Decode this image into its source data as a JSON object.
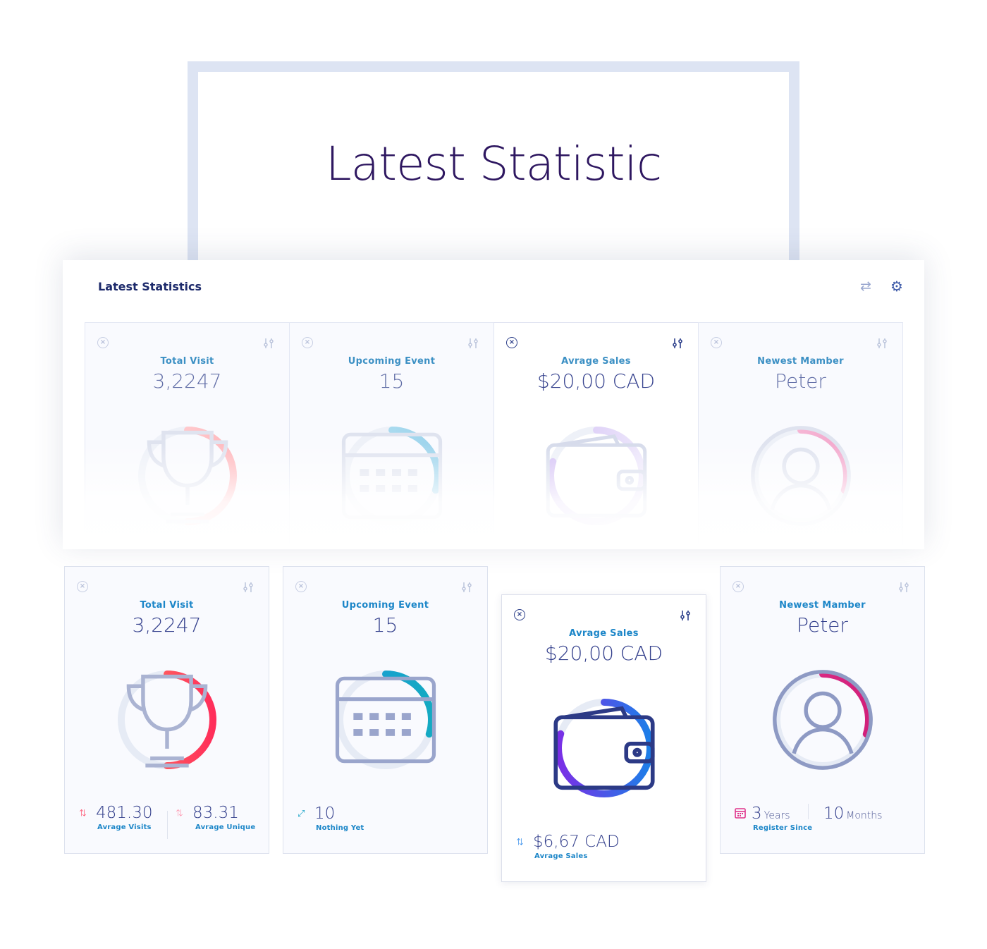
{
  "hero": {
    "title": "Latest Statistic"
  },
  "panel": {
    "title": "Latest Statistics",
    "cards": [
      {
        "label": "Total Visit",
        "value": "3,2247",
        "progress": 0.5,
        "color_start": "#ffd9dc",
        "color_end": "#ffb7bc",
        "icon": "trophy-icon"
      },
      {
        "label": "Upcoming Event",
        "value": "15",
        "progress": 0.3,
        "color_start": "#b6e1f2",
        "color_end": "#9bd3ec",
        "icon": "calendar-icon"
      },
      {
        "label": "Avrage Sales",
        "value": "$20,00 CAD",
        "progress": 0.8,
        "color_start": "#d4c1f5",
        "color_end": "#ede7fb",
        "icon": "wallet-icon"
      },
      {
        "label": "Newest Mamber",
        "value": "Peter",
        "progress": 0.3,
        "color_start": "#f8c6de",
        "color_end": "#f3a5cb",
        "icon": "user-icon"
      }
    ]
  },
  "cards": [
    {
      "label": "Total Visit",
      "value": "3,2247",
      "progress": 0.5,
      "color_start": "#ff7a62",
      "color_end": "#ff2e5a",
      "icon": "trophy-icon",
      "stats": [
        {
          "value": "481.30",
          "label": "Avrage Visits",
          "arrow_color": "#ff3d5e"
        },
        {
          "value": "83.31",
          "label": "Avrage Unique",
          "arrow_color": "#ff8aa6"
        }
      ]
    },
    {
      "label": "Upcoming Event",
      "value": "15",
      "progress": 0.3,
      "color_start": "#1b9ad8",
      "color_end": "#14aac2",
      "icon": "calendar-icon",
      "stats": [
        {
          "value": "10",
          "label": "Nothing Yet",
          "arrow_color": "#1aa3c7"
        }
      ]
    },
    {
      "label": "Avrage Sales",
      "value": "$20,00 CAD",
      "progress": 0.8,
      "color_start": "#7b2ee6",
      "color_end": "#1c7fe8",
      "icon": "wallet-icon",
      "stats": [
        {
          "value": "$6,67 CAD",
          "label": "Avrage Sales",
          "arrow_color": "#1c7fe8"
        }
      ]
    },
    {
      "label": "Newest Mamber",
      "value": "Peter",
      "progress": 0.3,
      "color_start": "#e0338a",
      "color_end": "#d21f7a",
      "icon": "user-icon",
      "stats": [
        {
          "value": "3",
          "unit": "Years",
          "label": "Register Since",
          "icon_color": "#e0338a"
        },
        {
          "value": "10",
          "unit": "Months"
        }
      ]
    }
  ]
}
